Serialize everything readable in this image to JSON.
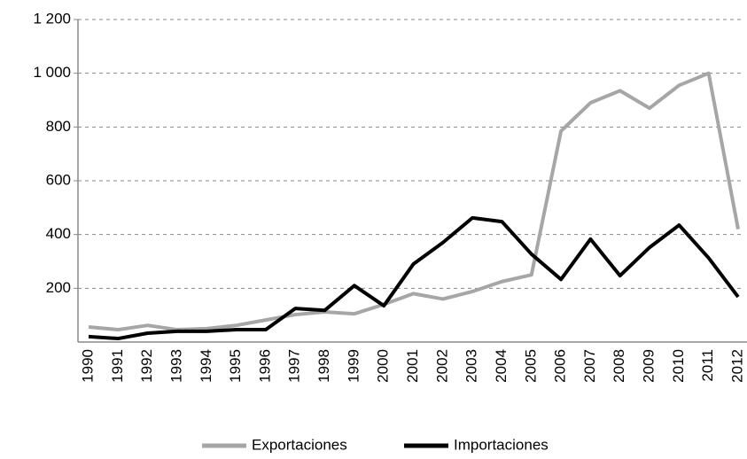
{
  "chart_data": {
    "type": "line",
    "categories": [
      "1990",
      "1991",
      "1992",
      "1993",
      "1994",
      "1995",
      "1996",
      "1997",
      "1998",
      "1999",
      "2000",
      "2001",
      "2002",
      "2003",
      "2004",
      "2005",
      "2006",
      "2007",
      "2008",
      "2009",
      "2010",
      "2011",
      "2012"
    ],
    "series": [
      {
        "name": "Exportaciones",
        "color": "#a6a6a6",
        "values": [
          56,
          46,
          62,
          46,
          50,
          62,
          82,
          102,
          112,
          105,
          140,
          180,
          160,
          188,
          225,
          250,
          785,
          890,
          935,
          870,
          955,
          1000,
          420
        ]
      },
      {
        "name": "Importaciones",
        "color": "#000000",
        "values": [
          20,
          13,
          33,
          40,
          40,
          46,
          46,
          125,
          118,
          210,
          135,
          290,
          370,
          462,
          448,
          327,
          233,
          383,
          247,
          352,
          435,
          313,
          168
        ]
      }
    ],
    "ylim": [
      0,
      1200
    ],
    "yticks": [
      {
        "value": 200,
        "label": "200"
      },
      {
        "value": 400,
        "label": "400"
      },
      {
        "value": 600,
        "label": "600"
      },
      {
        "value": 800,
        "label": "800"
      },
      {
        "value": 1000,
        "label": "1 000"
      },
      {
        "value": 1200,
        "label": "1 200"
      }
    ],
    "grid": true,
    "legend": "bottom"
  }
}
